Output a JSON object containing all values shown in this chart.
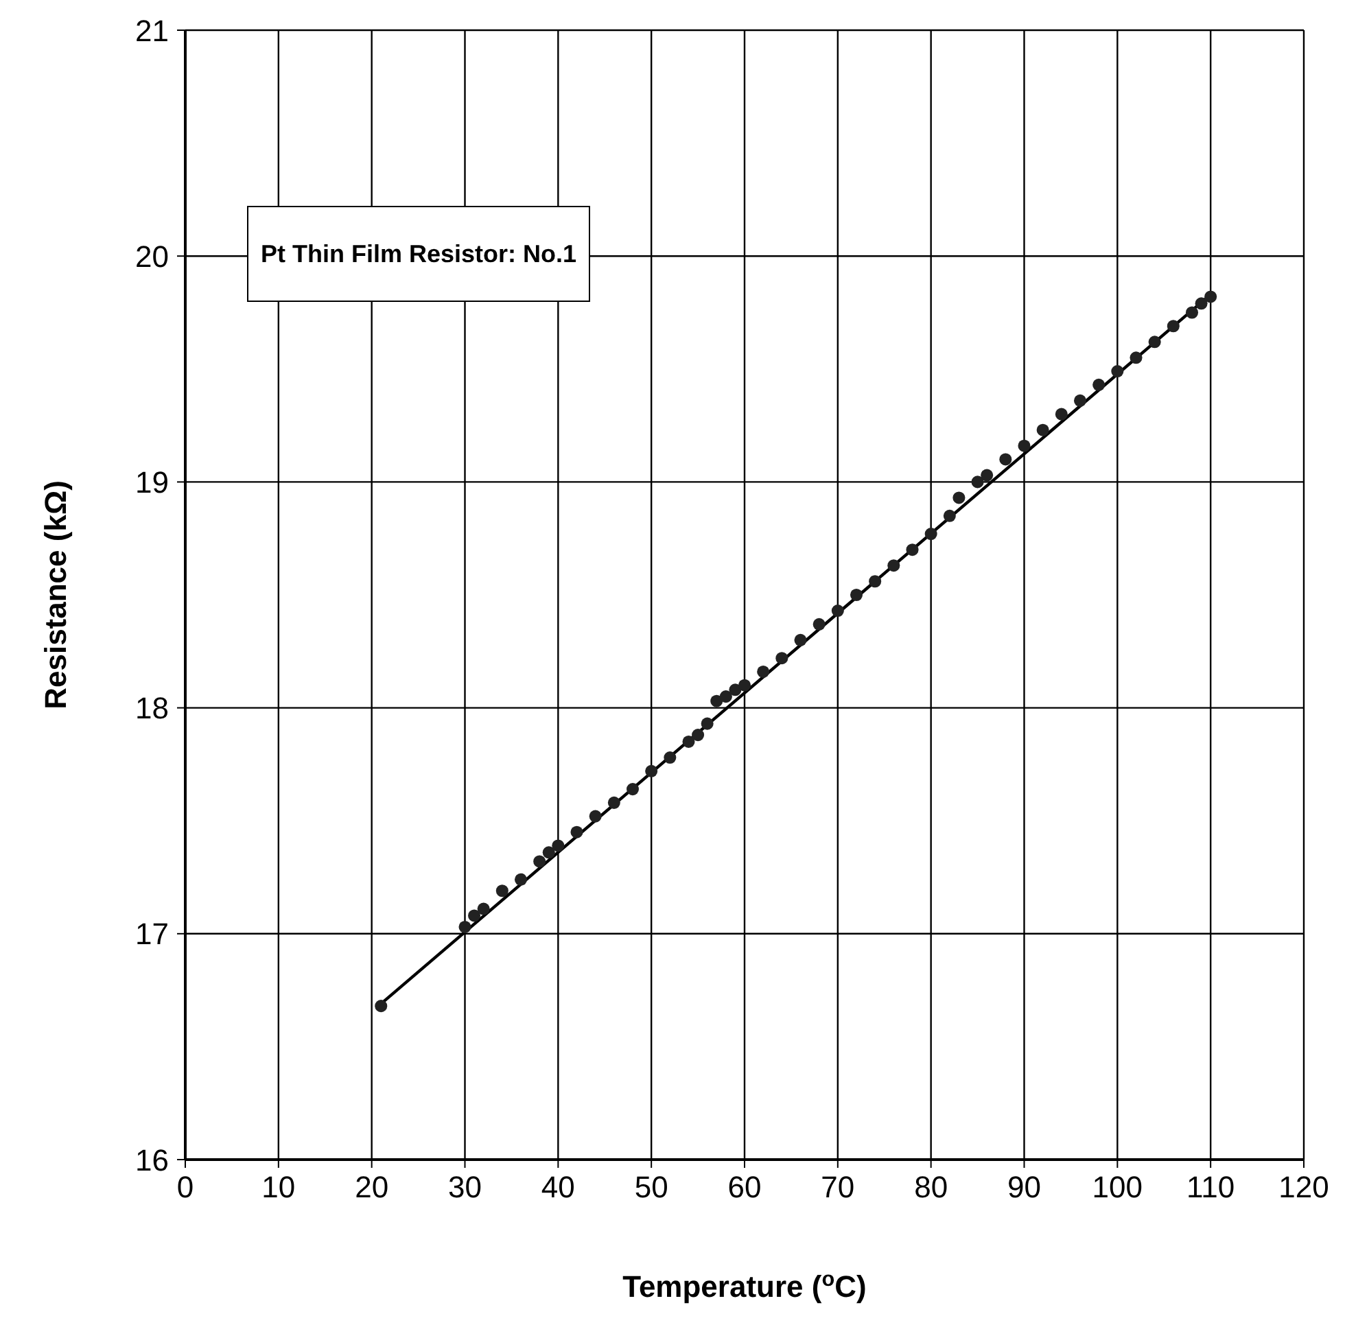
{
  "chart_data": {
    "type": "scatter",
    "title": "Pt Thin Film Resistor: No.1",
    "xlabel": "Temperature ($^{o}$C)",
    "ylabel": "Resistance (kΩ)",
    "xlim": [
      0,
      120
    ],
    "xticks": [
      0,
      10,
      20,
      30,
      40,
      50,
      60,
      70,
      80,
      90,
      100,
      110,
      120
    ],
    "ylim": [
      16,
      21
    ],
    "yticks": [
      16,
      17,
      18,
      19,
      20,
      21
    ],
    "grid": true,
    "marker": "circle",
    "line_style": "solid",
    "series": [
      {
        "color": "#222222",
        "x": [
          21,
          30,
          31,
          32,
          34,
          36,
          38,
          39,
          40,
          42,
          44,
          46,
          48,
          50,
          52,
          54,
          55,
          56,
          57,
          58,
          59,
          60,
          62,
          64,
          66,
          68,
          70,
          72,
          74,
          76,
          78,
          80,
          82,
          83,
          85,
          86,
          88,
          90,
          92,
          94,
          96,
          98,
          100,
          102,
          104,
          106,
          108,
          109,
          110
        ],
        "values": [
          16.68,
          17.03,
          17.08,
          17.11,
          17.19,
          17.24,
          17.32,
          17.36,
          17.39,
          17.45,
          17.52,
          17.58,
          17.64,
          17.72,
          17.78,
          17.85,
          17.88,
          17.93,
          18.03,
          18.05,
          18.08,
          18.1,
          18.16,
          18.22,
          18.3,
          18.37,
          18.43,
          18.5,
          18.56,
          18.63,
          18.7,
          18.77,
          18.85,
          18.93,
          19.0,
          19.03,
          19.1,
          19.16,
          19.23,
          19.3,
          19.36,
          19.43,
          19.49,
          19.55,
          19.62,
          19.69,
          19.75,
          19.79,
          19.82
        ]
      },
      {
        "type": "line",
        "marker": "none",
        "color": "#000000",
        "x": [
          21,
          110
        ],
        "values": [
          16.69,
          19.83
        ]
      }
    ]
  }
}
